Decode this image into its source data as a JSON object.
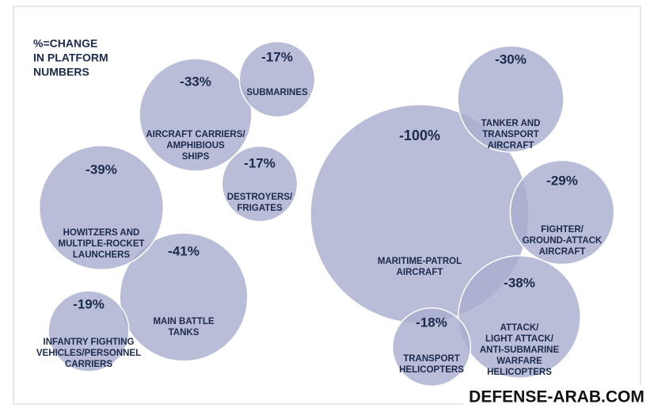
{
  "chart_data": {
    "type": "bubble",
    "title": [
      "%=CHANGE",
      "IN PLATFORM",
      "NUMBERS"
    ],
    "categories": [
      [
        "SUBMARINES"
      ],
      [
        "AIRCRAFT CARRIERS/",
        "AMPHIBIOUS",
        "SHIPS"
      ],
      [
        "DESTROYERS/",
        "FRIGATES"
      ],
      [
        "HOWITZERS AND",
        "MULTIPLE-ROCKET",
        "LAUNCHERS"
      ],
      [
        "MAIN BATTLE",
        "TANKS"
      ],
      [
        "INFANTRY FIGHTING",
        "VEHICLES/PERSONNEL",
        "CARRIERS"
      ],
      [
        "MARITIME-PATROL",
        "AIRCRAFT"
      ],
      [
        "TANKER AND",
        "TRANSPORT",
        "AIRCRAFT"
      ],
      [
        "FIGHTER/",
        "GROUND-ATTACK",
        "AIRCRAFT"
      ],
      [
        "ATTACK/",
        "LIGHT ATTACK/",
        "ANTI-SUBMARINE",
        "WARFARE",
        "HELICOPTERS"
      ],
      [
        "TRANSPORT",
        "HELICOPTERS"
      ]
    ],
    "values": [
      -17,
      -33,
      -17,
      -39,
      -41,
      -19,
      -100,
      -30,
      -29,
      -38,
      -18
    ],
    "value_labels": [
      "-17%",
      "-33%",
      "-17%",
      "-39%",
      "-41%",
      "-19%",
      "-100%",
      "-30%",
      "-29%",
      "-38%",
      "-18%"
    ],
    "color": "#a9afd0",
    "watermark": "DEFENSE-ARAB.COM"
  }
}
